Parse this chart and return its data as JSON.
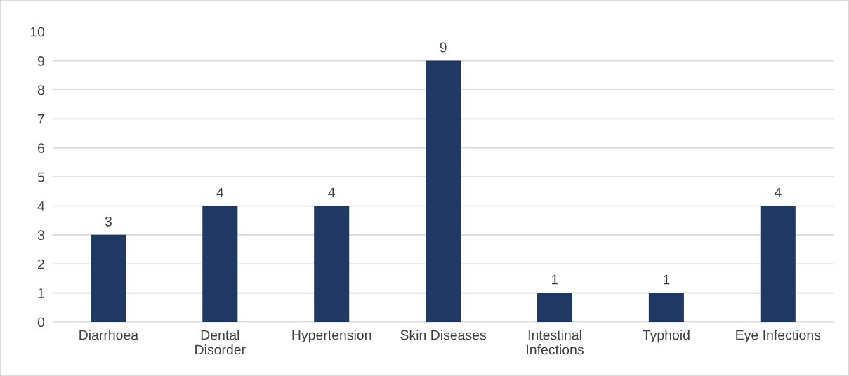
{
  "chart_data": {
    "type": "bar",
    "categories": [
      "Diarrhoea",
      "Dental\nDisorder",
      "Hypertension",
      "Skin Diseases",
      "Intestinal\nInfections",
      "Typhoid",
      "Eye Infections"
    ],
    "values": [
      3,
      4,
      4,
      9,
      1,
      1,
      4
    ],
    "color": "#1f3864",
    "ylim": [
      0,
      10
    ],
    "yticks": [
      0,
      1,
      2,
      3,
      4,
      5,
      6,
      7,
      8,
      9,
      10
    ],
    "grid": "y",
    "data_labels": true
  }
}
